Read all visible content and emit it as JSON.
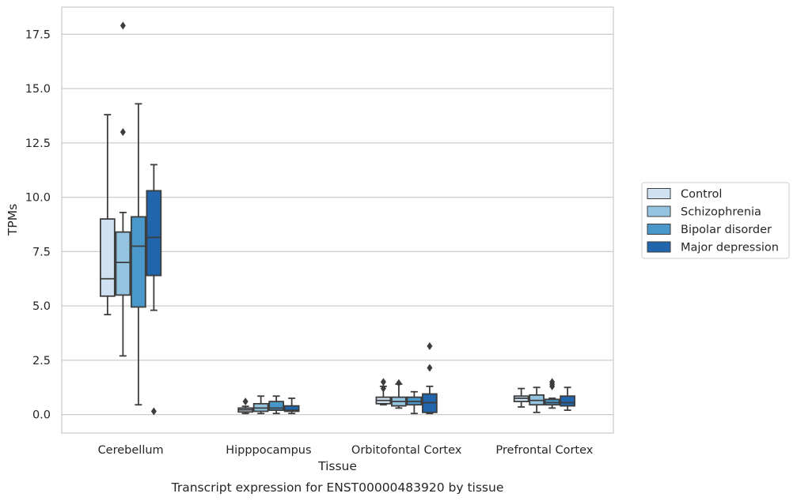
{
  "chart_data": {
    "type": "box",
    "title": "",
    "caption": "Transcript expression for ENST00000483920 by tissue",
    "xlabel": "Tissue",
    "ylabel": "TPMs",
    "ylim": [
      -0.85,
      18.75
    ],
    "yticks": [
      "0.0",
      "2.5",
      "5.0",
      "7.5",
      "10.0",
      "12.5",
      "15.0",
      "17.5"
    ],
    "ytick_values": [
      0,
      2.5,
      5,
      7.5,
      10,
      12.5,
      15,
      17.5
    ],
    "grid": true,
    "legend_position": "right",
    "categories": [
      "Cerebellum",
      "Hipppocampus",
      "Orbitofontal Cortex",
      "Prefrontal Cortex"
    ],
    "series": [
      {
        "name": "Control",
        "color": "#d0e1f2",
        "boxes": [
          {
            "whislo": 4.6,
            "q1": 5.45,
            "med": 6.25,
            "q3": 9.0,
            "whishi": 13.8,
            "fliers": []
          },
          {
            "whislo": 0.05,
            "q1": 0.12,
            "med": 0.22,
            "q3": 0.3,
            "whishi": 0.38,
            "fliers": [
              0.6
            ]
          },
          {
            "whislo": 0.45,
            "q1": 0.5,
            "med": 0.65,
            "q3": 0.8,
            "whishi": 1.3,
            "fliers": [
              1.2,
              1.5
            ]
          },
          {
            "whislo": 0.35,
            "q1": 0.6,
            "med": 0.75,
            "q3": 0.85,
            "whishi": 1.2,
            "fliers": []
          }
        ]
      },
      {
        "name": "Schizophrenia",
        "color": "#94c4df",
        "boxes": [
          {
            "whislo": 2.7,
            "q1": 5.5,
            "med": 7.0,
            "q3": 8.4,
            "whishi": 9.3,
            "fliers": [
              13.0,
              17.9
            ]
          },
          {
            "whislo": 0.05,
            "q1": 0.15,
            "med": 0.3,
            "q3": 0.5,
            "whishi": 0.85,
            "fliers": []
          },
          {
            "whislo": 0.3,
            "q1": 0.4,
            "med": 0.6,
            "q3": 0.8,
            "whishi": 1.4,
            "fliers": [
              1.45
            ]
          },
          {
            "whislo": 0.1,
            "q1": 0.45,
            "med": 0.65,
            "q3": 0.9,
            "whishi": 1.25,
            "fliers": []
          }
        ]
      },
      {
        "name": "Bipolar disorder",
        "color": "#4a98c9",
        "boxes": [
          {
            "whislo": 0.45,
            "q1": 4.95,
            "med": 7.75,
            "q3": 9.1,
            "whishi": 14.3,
            "fliers": []
          },
          {
            "whislo": 0.05,
            "q1": 0.2,
            "med": 0.3,
            "q3": 0.6,
            "whishi": 0.85,
            "fliers": []
          },
          {
            "whislo": 0.05,
            "q1": 0.45,
            "med": 0.6,
            "q3": 0.8,
            "whishi": 1.05,
            "fliers": []
          },
          {
            "whislo": 0.3,
            "q1": 0.45,
            "med": 0.55,
            "q3": 0.7,
            "whishi": 0.75,
            "fliers": [
              1.3,
              1.4,
              1.5
            ]
          }
        ]
      },
      {
        "name": "Major depression",
        "color": "#2166ac",
        "boxes": [
          {
            "whislo": 4.8,
            "q1": 6.4,
            "med": 8.15,
            "q3": 10.3,
            "whishi": 11.5,
            "fliers": [
              0.15
            ]
          },
          {
            "whislo": 0.05,
            "q1": 0.15,
            "med": 0.2,
            "q3": 0.4,
            "whishi": 0.75,
            "fliers": []
          },
          {
            "whislo": 0.05,
            "q1": 0.1,
            "med": 0.55,
            "q3": 0.95,
            "whishi": 1.3,
            "fliers": [
              2.15,
              3.15
            ]
          },
          {
            "whislo": 0.2,
            "q1": 0.4,
            "med": 0.55,
            "q3": 0.85,
            "whishi": 1.25,
            "fliers": []
          }
        ]
      }
    ]
  }
}
